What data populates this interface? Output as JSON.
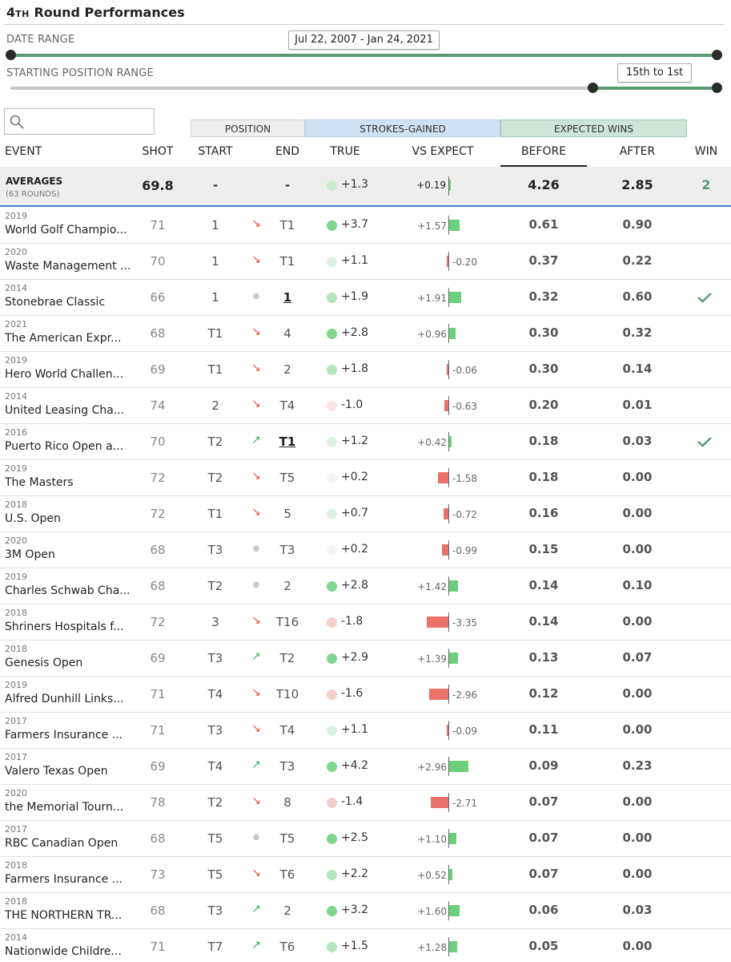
{
  "title": {
    "num": "4",
    "sup": "TH",
    "text": "Round Performances"
  },
  "date_range": {
    "label": "DATE RANGE",
    "value": "Jul 22, 2007 - Jan 24, 2021"
  },
  "position_range": {
    "label": "STARTING POSITION RANGE",
    "value": "15th to 1st"
  },
  "search": {
    "placeholder": ""
  },
  "groups": {
    "position": "POSITION",
    "strokes_gained": "STROKES-GAINED",
    "expected_wins": "EXPECTED WINS"
  },
  "columns": {
    "event": "EVENT",
    "shot": "SHOT",
    "start": "START",
    "end": "END",
    "true": "TRUE",
    "vs_expect": "VS EXPECT",
    "before": "BEFORE",
    "after": "AFTER",
    "win": "WIN"
  },
  "averages": {
    "label": "AVERAGES",
    "sub": "(63 ROUNDS)",
    "shot": "69.8",
    "start": "-",
    "end": "-",
    "true": "+1.3",
    "vs_expect": "+0.19",
    "vs_value": 0.19,
    "before": "4.26",
    "after": "2.85",
    "win": "2"
  },
  "colors": {
    "positive": "#6ccf7c",
    "negative": "#ea7269",
    "accent": "#5a9a74",
    "divider": "#4a7bc8"
  },
  "rows": [
    {
      "year": "2019",
      "event": "World Golf Champio...",
      "shot": "71",
      "start": "1",
      "move": "down",
      "end": "T1",
      "end_won": false,
      "true": "+3.7",
      "vs_expect": "+1.57",
      "vs_value": 1.57,
      "before": "0.61",
      "after": "0.90",
      "win": false
    },
    {
      "year": "2020",
      "event": "Waste Management ...",
      "shot": "70",
      "start": "1",
      "move": "down",
      "end": "T1",
      "end_won": false,
      "true": "+1.1",
      "vs_expect": "-0.20",
      "vs_value": -0.2,
      "before": "0.37",
      "after": "0.22",
      "win": false
    },
    {
      "year": "2014",
      "event": "Stonebrae Classic",
      "shot": "66",
      "start": "1",
      "move": "flat",
      "end": "1",
      "end_won": true,
      "true": "+1.9",
      "vs_expect": "+1.91",
      "vs_value": 1.91,
      "before": "0.32",
      "after": "0.60",
      "win": true
    },
    {
      "year": "2021",
      "event": "The American Expr...",
      "shot": "68",
      "start": "T1",
      "move": "down",
      "end": "4",
      "end_won": false,
      "true": "+2.8",
      "vs_expect": "+0.96",
      "vs_value": 0.96,
      "before": "0.30",
      "after": "0.32",
      "win": false
    },
    {
      "year": "2019",
      "event": "Hero World Challen...",
      "shot": "69",
      "start": "T1",
      "move": "down",
      "end": "2",
      "end_won": false,
      "true": "+1.8",
      "vs_expect": "-0.06",
      "vs_value": -0.06,
      "before": "0.30",
      "after": "0.14",
      "win": false
    },
    {
      "year": "2014",
      "event": "United Leasing Cha...",
      "shot": "74",
      "start": "2",
      "move": "down",
      "end": "T4",
      "end_won": false,
      "true": "-1.0",
      "vs_expect": "-0.63",
      "vs_value": -0.63,
      "before": "0.20",
      "after": "0.01",
      "win": false
    },
    {
      "year": "2016",
      "event": "Puerto Rico Open a...",
      "shot": "70",
      "start": "T2",
      "move": "up",
      "end": "T1",
      "end_won": true,
      "true": "+1.2",
      "vs_expect": "+0.42",
      "vs_value": 0.42,
      "before": "0.18",
      "after": "0.03",
      "win": true
    },
    {
      "year": "2019",
      "event": "The Masters",
      "shot": "72",
      "start": "T2",
      "move": "down",
      "end": "T5",
      "end_won": false,
      "true": "+0.2",
      "vs_expect": "-1.58",
      "vs_value": -1.58,
      "before": "0.18",
      "after": "0.00",
      "win": false
    },
    {
      "year": "2018",
      "event": "U.S. Open",
      "shot": "72",
      "start": "T1",
      "move": "down",
      "end": "5",
      "end_won": false,
      "true": "+0.7",
      "vs_expect": "-0.72",
      "vs_value": -0.72,
      "before": "0.16",
      "after": "0.00",
      "win": false
    },
    {
      "year": "2020",
      "event": "3M Open",
      "shot": "68",
      "start": "T3",
      "move": "flat",
      "end": "T3",
      "end_won": false,
      "true": "+0.2",
      "vs_expect": "-0.99",
      "vs_value": -0.99,
      "before": "0.15",
      "after": "0.00",
      "win": false
    },
    {
      "year": "2019",
      "event": "Charles Schwab Cha...",
      "shot": "68",
      "start": "T2",
      "move": "flat",
      "end": "2",
      "end_won": false,
      "true": "+2.8",
      "vs_expect": "+1.42",
      "vs_value": 1.42,
      "before": "0.14",
      "after": "0.10",
      "win": false
    },
    {
      "year": "2018",
      "event": "Shriners Hospitals f...",
      "shot": "72",
      "start": "3",
      "move": "down",
      "end": "T16",
      "end_won": false,
      "true": "-1.8",
      "vs_expect": "-3.35",
      "vs_value": -3.35,
      "before": "0.14",
      "after": "0.00",
      "win": false
    },
    {
      "year": "2018",
      "event": "Genesis Open",
      "shot": "69",
      "start": "T3",
      "move": "up",
      "end": "T2",
      "end_won": false,
      "true": "+2.9",
      "vs_expect": "+1.39",
      "vs_value": 1.39,
      "before": "0.13",
      "after": "0.07",
      "win": false
    },
    {
      "year": "2019",
      "event": "Alfred Dunhill Links...",
      "shot": "71",
      "start": "T4",
      "move": "down",
      "end": "T10",
      "end_won": false,
      "true": "-1.6",
      "vs_expect": "-2.96",
      "vs_value": -2.96,
      "before": "0.12",
      "after": "0.00",
      "win": false
    },
    {
      "year": "2017",
      "event": "Farmers Insurance ...",
      "shot": "71",
      "start": "T3",
      "move": "down",
      "end": "T4",
      "end_won": false,
      "true": "+1.1",
      "vs_expect": "-0.09",
      "vs_value": -0.09,
      "before": "0.11",
      "after": "0.00",
      "win": false
    },
    {
      "year": "2017",
      "event": "Valero Texas Open",
      "shot": "69",
      "start": "T4",
      "move": "up",
      "end": "T3",
      "end_won": false,
      "true": "+4.2",
      "vs_expect": "+2.96",
      "vs_value": 2.96,
      "before": "0.09",
      "after": "0.23",
      "win": false
    },
    {
      "year": "2020",
      "event": "the Memorial Tourn...",
      "shot": "78",
      "start": "T2",
      "move": "down",
      "end": "8",
      "end_won": false,
      "true": "-1.4",
      "vs_expect": "-2.71",
      "vs_value": -2.71,
      "before": "0.07",
      "after": "0.00",
      "win": false
    },
    {
      "year": "2017",
      "event": "RBC Canadian Open",
      "shot": "68",
      "start": "T5",
      "move": "flat",
      "end": "T5",
      "end_won": false,
      "true": "+2.5",
      "vs_expect": "+1.10",
      "vs_value": 1.1,
      "before": "0.07",
      "after": "0.00",
      "win": false
    },
    {
      "year": "2018",
      "event": "Farmers Insurance ...",
      "shot": "73",
      "start": "T5",
      "move": "down",
      "end": "T6",
      "end_won": false,
      "true": "+2.2",
      "vs_expect": "+0.52",
      "vs_value": 0.52,
      "before": "0.07",
      "after": "0.00",
      "win": false
    },
    {
      "year": "2018",
      "event": "THE NORTHERN TR...",
      "shot": "68",
      "start": "T3",
      "move": "up",
      "end": "2",
      "end_won": false,
      "true": "+3.2",
      "vs_expect": "+1.60",
      "vs_value": 1.6,
      "before": "0.06",
      "after": "0.03",
      "win": false
    },
    {
      "year": "2014",
      "event": "Nationwide Childre...",
      "shot": "71",
      "start": "T7",
      "move": "up",
      "end": "T6",
      "end_won": false,
      "true": "+1.5",
      "vs_expect": "+1.28",
      "vs_value": 1.28,
      "before": "0.05",
      "after": "0.00",
      "win": false
    }
  ]
}
